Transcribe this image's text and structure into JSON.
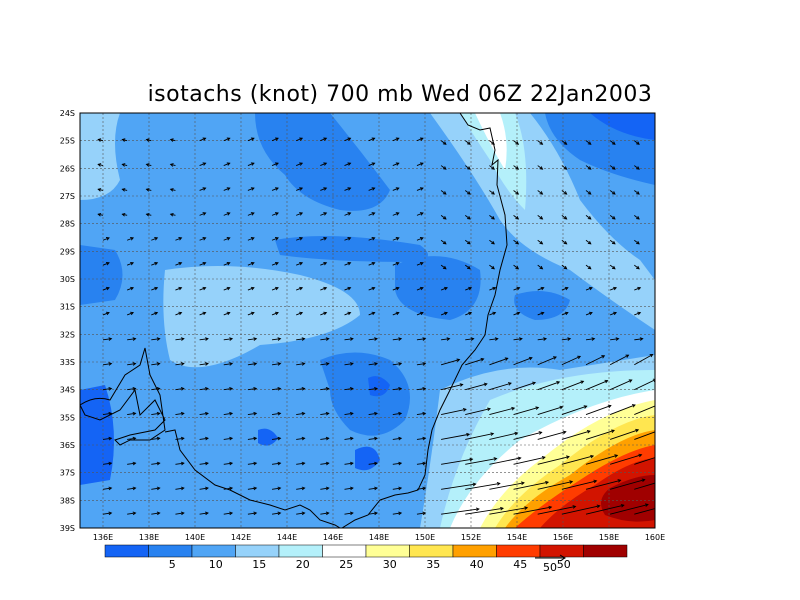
{
  "title": "isotachs (knot) 700 mb Wed 06Z 22Jan2003",
  "lat_labels": [
    "24S",
    "25S",
    "26S",
    "27S",
    "28S",
    "29S",
    "30S",
    "31S",
    "32S",
    "33S",
    "34S",
    "35S",
    "36S",
    "37S",
    "38S",
    "39S"
  ],
  "lon_labels": [
    "136E",
    "138E",
    "140E",
    "142E",
    "144E",
    "146E",
    "148E",
    "150E",
    "152E",
    "154E",
    "156E",
    "158E",
    "160E"
  ],
  "colorbar": {
    "colors": [
      "#1464f5",
      "#2882f0",
      "#50a5f5",
      "#96d2fa",
      "#b4f0fa",
      "#ffffff",
      "#ffff96",
      "#ffe650",
      "#ffa000",
      "#ff3c00",
      "#d21400",
      "#a00000"
    ],
    "labels": [
      "5",
      "10",
      "15",
      "20",
      "25",
      "30",
      "35",
      "40",
      "45",
      "50"
    ]
  },
  "reference_vector": {
    "label": "50"
  }
}
